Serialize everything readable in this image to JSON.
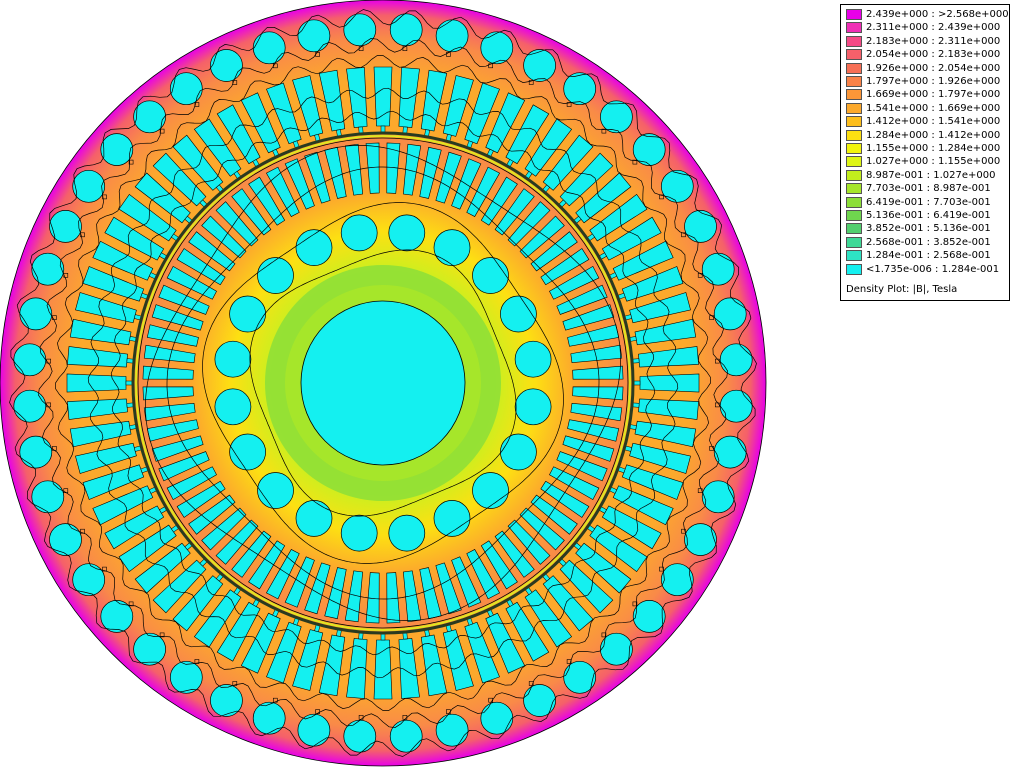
{
  "legend": {
    "entries": [
      {
        "range": "2.439e+000 : >2.568e+000",
        "color": "#e800e8"
      },
      {
        "range": "2.311e+000 : 2.439e+000",
        "color": "#f02fb6"
      },
      {
        "range": "2.183e+000 : 2.311e+000",
        "color": "#f44a86"
      },
      {
        "range": "2.054e+000 : 2.183e+000",
        "color": "#f5606a"
      },
      {
        "range": "1.926e+000 : 2.054e+000",
        "color": "#f76f55"
      },
      {
        "range": "1.797e+000 : 1.926e+000",
        "color": "#f98248"
      },
      {
        "range": "1.669e+000 : 1.797e+000",
        "color": "#fb9638"
      },
      {
        "range": "1.541e+000 : 1.669e+000",
        "color": "#fca92c"
      },
      {
        "range": "1.412e+000 : 1.541e+000",
        "color": "#fdbe1c"
      },
      {
        "range": "1.284e+000 : 1.412e+000",
        "color": "#fde012"
      },
      {
        "range": "1.155e+000 : 1.284e+000",
        "color": "#f2f40d"
      },
      {
        "range": "1.027e+000 : 1.155e+000",
        "color": "#def515"
      },
      {
        "range": "8.987e-001 : 1.027e+000",
        "color": "#c2ee1d"
      },
      {
        "range": "7.703e-001 : 8.987e-001",
        "color": "#a6e62a"
      },
      {
        "range": "6.419e-001 : 7.703e-001",
        "color": "#8cde38"
      },
      {
        "range": "5.136e-001 : 6.419e-001",
        "color": "#6fd64e"
      },
      {
        "range": "3.852e-001 : 5.136e-001",
        "color": "#52cf6e"
      },
      {
        "range": "2.568e-001 : 3.852e-001",
        "color": "#3ed896"
      },
      {
        "range": "1.284e-001 : 2.568e-001",
        "color": "#2ee3c4"
      },
      {
        "range": "<1.735e-006 : 1.284e-001",
        "color": "#14f0f0"
      }
    ],
    "caption": "Density Plot: |B|, Tesla"
  },
  "machine": {
    "outer_ring_holes": 48,
    "stator_slots": 72,
    "rotor_slots": 72,
    "rotor_holes": 20,
    "colors": {
      "air": "#14f0f0",
      "yoke": "#f98a48",
      "tooth": "#f4606a",
      "rotor": "#fca92c",
      "rim_low": "#c8f020",
      "hub": "#8cde38",
      "shaft": "#14f0f0",
      "flux_line": "#000000"
    }
  }
}
